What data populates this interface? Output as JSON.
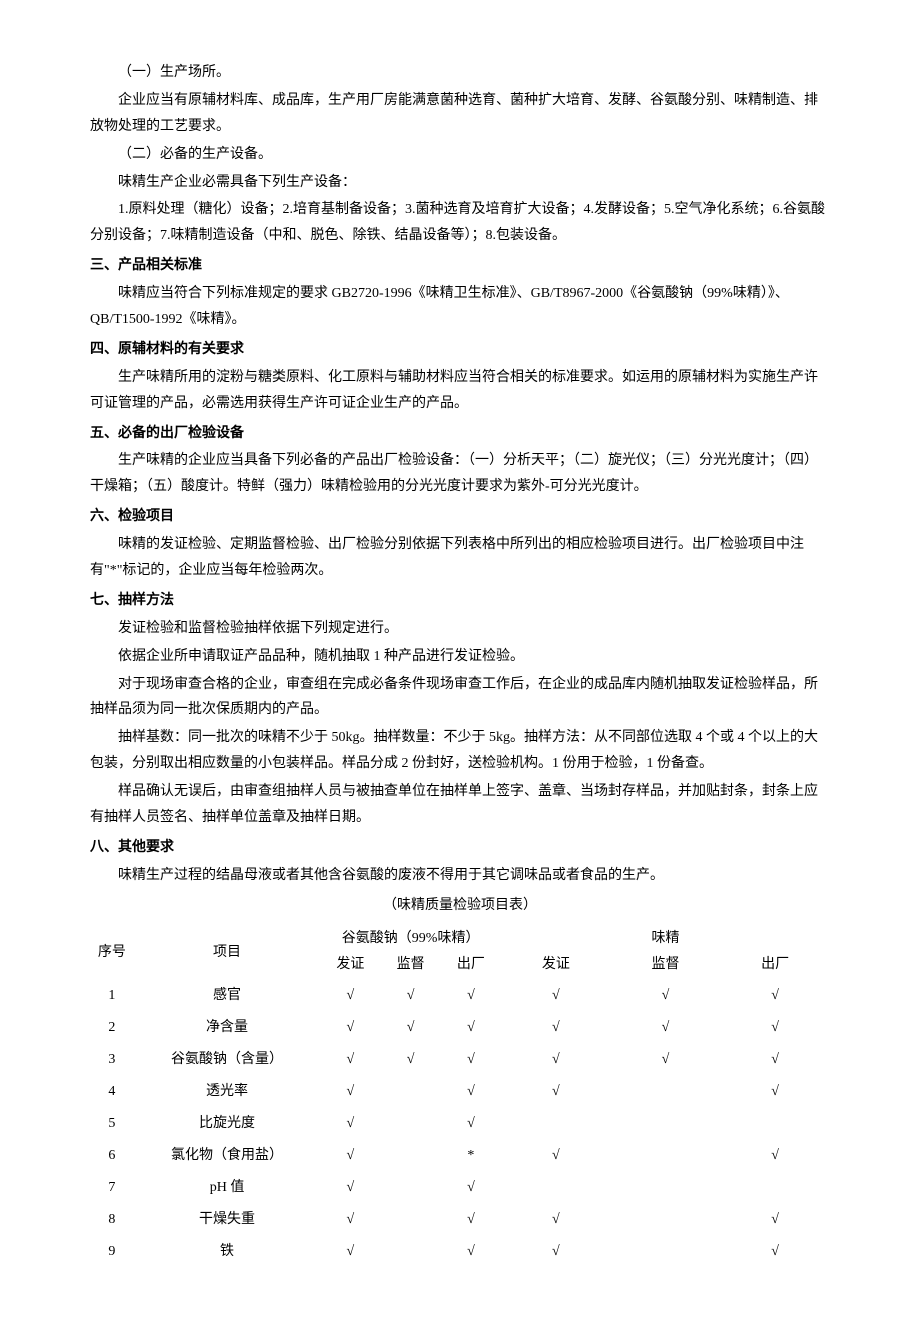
{
  "paragraphs": [
    {
      "type": "para",
      "text": "（一）生产场所。"
    },
    {
      "type": "para",
      "text": "企业应当有原辅材料库、成品库，生产用厂房能满意菌种选育、菌种扩大培育、发酵、谷氨酸分别、味精制造、排放物处理的工艺要求。"
    },
    {
      "type": "para",
      "text": "（二）必备的生产设备。"
    },
    {
      "type": "para",
      "text": "味精生产企业必需具备下列生产设备："
    },
    {
      "type": "para",
      "text": "1.原料处理（糖化）设备；2.培育基制备设备；3.菌种选育及培育扩大设备；4.发酵设备；5.空气净化系统；6.谷氨酸分别设备；7.味精制造设备（中和、脱色、除铁、结晶设备等）；8.包装设备。"
    },
    {
      "type": "heading",
      "text": "三、产品相关标准"
    },
    {
      "type": "para",
      "text": "味精应当符合下列标准规定的要求 GB2720-1996《味精卫生标准》、GB/T8967-2000《谷氨酸钠（99%味精）》、QB/T1500-1992《味精》。"
    },
    {
      "type": "heading",
      "text": "四、原辅材料的有关要求"
    },
    {
      "type": "para",
      "text": "生产味精所用的淀粉与糖类原料、化工原料与辅助材料应当符合相关的标准要求。如运用的原辅材料为实施生产许可证管理的产品，必需选用获得生产许可证企业生产的产品。"
    },
    {
      "type": "heading",
      "text": "五、必备的出厂检验设备"
    },
    {
      "type": "para",
      "text": "生产味精的企业应当具备下列必备的产品出厂检验设备：（一）分析天平；（二）旋光仪；（三）分光光度计；（四）干燥箱；（五）酸度计。特鲜（强力）味精检验用的分光光度计要求为紫外-可分光光度计。"
    },
    {
      "type": "heading",
      "text": "六、检验项目"
    },
    {
      "type": "para",
      "text": "味精的发证检验、定期监督检验、出厂检验分别依据下列表格中所列出的相应检验项目进行。出厂检验项目中注有\"*\"标记的，企业应当每年检验两次。"
    },
    {
      "type": "heading",
      "text": "七、抽样方法"
    },
    {
      "type": "para",
      "text": "发证检验和监督检验抽样依据下列规定进行。"
    },
    {
      "type": "para",
      "text": "依据企业所申请取证产品品种，随机抽取 1 种产品进行发证检验。"
    },
    {
      "type": "para",
      "text": "对于现场审查合格的企业，审查组在完成必备条件现场审查工作后，在企业的成品库内随机抽取发证检验样品，所抽样品须为同一批次保质期内的产品。"
    },
    {
      "type": "para",
      "text": "抽样基数：同一批次的味精不少于 50kg。抽样数量：不少于 5kg。抽样方法：从不同部位选取 4 个或 4 个以上的大包装，分别取出相应数量的小包装样品。样品分成 2 份封好，送检验机构。1 份用于检验，1 份备查。"
    },
    {
      "type": "para",
      "text": "样品确认无误后，由审查组抽样人员与被抽查单位在抽样单上签字、盖章、当场封存样品，并加贴封条，封条上应有抽样人员签名、抽样单位盖章及抽样日期。"
    },
    {
      "type": "heading",
      "text": "八、其他要求"
    },
    {
      "type": "para",
      "text": "味精生产过程的结晶母液或者其他含谷氨酸的废液不得用于其它调味品或者食品的生产。"
    }
  ],
  "table": {
    "title": "（味精质量检验项目表）",
    "header_top": {
      "seq": "序号",
      "item": "项目",
      "group1": "谷氨酸钠（99%味精）",
      "group2": "味精"
    },
    "header_sub": [
      "发证",
      "监督",
      "出厂",
      "发证",
      "监督",
      "出厂"
    ],
    "rows": [
      {
        "seq": "1",
        "item": "感官",
        "cells": [
          "√",
          "√",
          "√",
          "√",
          "√",
          "√"
        ]
      },
      {
        "seq": "2",
        "item": "净含量",
        "cells": [
          "√",
          "√",
          "√",
          "√",
          "√",
          "√"
        ]
      },
      {
        "seq": "3",
        "item": "谷氨酸钠（含量）",
        "cells": [
          "√",
          "√",
          "√",
          "√",
          "√",
          "√"
        ]
      },
      {
        "seq": "4",
        "item": "透光率",
        "cells": [
          "√",
          "",
          "√",
          "√",
          "",
          "√"
        ]
      },
      {
        "seq": "5",
        "item": "比旋光度",
        "cells": [
          "√",
          "",
          "√",
          "",
          "",
          ""
        ]
      },
      {
        "seq": "6",
        "item": "氯化物（食用盐）",
        "cells": [
          "√",
          "",
          "*",
          "√",
          "",
          "√"
        ]
      },
      {
        "seq": "7",
        "item": "pH 值",
        "cells": [
          "√",
          "",
          "√",
          "",
          "",
          ""
        ]
      },
      {
        "seq": "8",
        "item": "干燥失重",
        "cells": [
          "√",
          "",
          "√",
          "√",
          "",
          "√"
        ]
      },
      {
        "seq": "9",
        "item": "铁",
        "cells": [
          "√",
          "",
          "√",
          "√",
          "",
          "√"
        ]
      }
    ]
  }
}
